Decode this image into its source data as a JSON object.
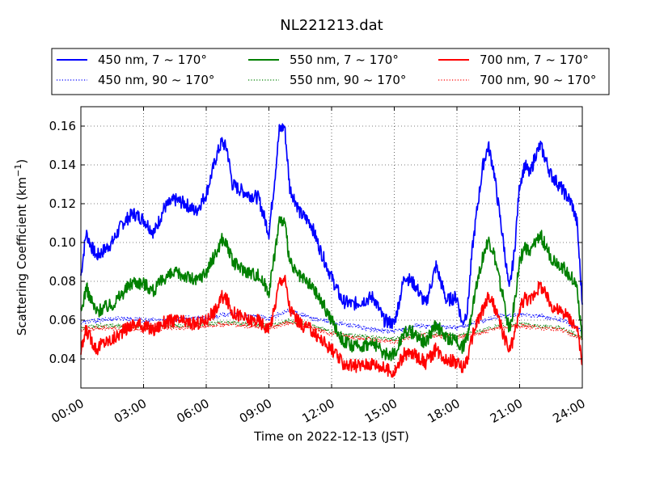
{
  "chart_data": {
    "type": "line",
    "title": "NL221213.dat",
    "xlabel": "Time on 2022-12-13 (JST)",
    "ylabel_main": "Scattering Coefficient (km",
    "ylabel_sup": "−1",
    "ylabel_end": ")",
    "xlim": [
      0,
      24
    ],
    "ylim": [
      0.025,
      0.17
    ],
    "x_ticks": [
      0,
      3,
      6,
      9,
      12,
      15,
      18,
      21,
      24
    ],
    "x_tick_labels": [
      "00:00",
      "03:00",
      "06:00",
      "09:00",
      "12:00",
      "15:00",
      "18:00",
      "21:00",
      "24:00"
    ],
    "y_ticks": [
      0.04,
      0.06,
      0.08,
      0.1,
      0.12,
      0.14,
      0.16
    ],
    "y_tick_labels": [
      "0.04",
      "0.06",
      "0.08",
      "0.10",
      "0.12",
      "0.14",
      "0.16"
    ],
    "grid": true,
    "legend_position": "top",
    "series": [
      {
        "name": "450 nm, 7 ~ 170°",
        "color": "#0000ff",
        "style": "solid",
        "x": [
          0,
          0.25,
          0.5,
          0.75,
          1,
          1.5,
          2,
          2.5,
          3,
          3.5,
          4,
          4.5,
          5,
          5.5,
          6,
          6.5,
          6.75,
          7,
          7.25,
          7.5,
          8,
          8.5,
          9,
          9.25,
          9.5,
          9.75,
          10,
          10.25,
          10.5,
          11,
          11.5,
          12,
          12.5,
          13,
          13.5,
          14,
          14.5,
          15,
          15.5,
          16,
          16.5,
          17,
          17.5,
          18,
          18.25,
          18.5,
          18.75,
          19,
          19.25,
          19.5,
          19.75,
          20,
          20.25,
          20.5,
          20.75,
          21,
          21.25,
          21.5,
          21.75,
          22,
          22.5,
          23,
          23.5,
          23.75,
          24
        ],
        "y": [
          0.083,
          0.105,
          0.098,
          0.093,
          0.095,
          0.1,
          0.11,
          0.115,
          0.112,
          0.105,
          0.118,
          0.122,
          0.12,
          0.116,
          0.125,
          0.145,
          0.152,
          0.148,
          0.13,
          0.128,
          0.125,
          0.123,
          0.105,
          0.13,
          0.158,
          0.16,
          0.128,
          0.122,
          0.115,
          0.11,
          0.095,
          0.082,
          0.07,
          0.068,
          0.07,
          0.072,
          0.06,
          0.058,
          0.083,
          0.078,
          0.068,
          0.088,
          0.07,
          0.072,
          0.058,
          0.065,
          0.098,
          0.12,
          0.14,
          0.15,
          0.138,
          0.118,
          0.098,
          0.075,
          0.095,
          0.13,
          0.14,
          0.135,
          0.145,
          0.15,
          0.135,
          0.128,
          0.12,
          0.11,
          0.068
        ]
      },
      {
        "name": "450 nm, 90 ~ 170°",
        "color": "#0000ff",
        "style": "dotted",
        "x": [
          0,
          1,
          2,
          3,
          4,
          5,
          6,
          7,
          8,
          9,
          10,
          11,
          12,
          13,
          14,
          15,
          16,
          17,
          18,
          19,
          20,
          21,
          22,
          23,
          24
        ],
        "y": [
          0.059,
          0.06,
          0.061,
          0.06,
          0.06,
          0.061,
          0.061,
          0.063,
          0.062,
          0.061,
          0.065,
          0.061,
          0.059,
          0.057,
          0.055,
          0.054,
          0.057,
          0.057,
          0.056,
          0.059,
          0.062,
          0.063,
          0.062,
          0.06,
          0.055
        ]
      },
      {
        "name": "550 nm, 7 ~ 170°",
        "color": "#008000",
        "style": "solid",
        "x": [
          0,
          0.25,
          0.5,
          0.75,
          1,
          1.5,
          2,
          2.5,
          3,
          3.5,
          4,
          4.5,
          5,
          5.5,
          6,
          6.5,
          6.75,
          7,
          7.25,
          7.5,
          8,
          8.5,
          9,
          9.25,
          9.5,
          9.75,
          10,
          10.25,
          10.5,
          11,
          11.5,
          12,
          12.5,
          13,
          13.5,
          14,
          14.5,
          15,
          15.5,
          16,
          16.5,
          17,
          17.5,
          18,
          18.25,
          18.5,
          18.75,
          19,
          19.25,
          19.5,
          19.75,
          20,
          20.25,
          20.5,
          20.75,
          21,
          21.25,
          21.5,
          21.75,
          22,
          22.5,
          23,
          23.5,
          23.75,
          24
        ],
        "y": [
          0.063,
          0.077,
          0.07,
          0.064,
          0.066,
          0.068,
          0.074,
          0.08,
          0.079,
          0.075,
          0.082,
          0.084,
          0.083,
          0.08,
          0.085,
          0.095,
          0.102,
          0.099,
          0.09,
          0.088,
          0.085,
          0.083,
          0.075,
          0.092,
          0.112,
          0.11,
          0.09,
          0.085,
          0.082,
          0.078,
          0.07,
          0.06,
          0.05,
          0.046,
          0.047,
          0.048,
          0.043,
          0.042,
          0.055,
          0.053,
          0.048,
          0.058,
          0.05,
          0.05,
          0.046,
          0.05,
          0.068,
          0.082,
          0.093,
          0.101,
          0.095,
          0.082,
          0.07,
          0.055,
          0.068,
          0.09,
          0.098,
          0.094,
          0.1,
          0.104,
          0.092,
          0.088,
          0.082,
          0.077,
          0.05
        ]
      },
      {
        "name": "550 nm, 90 ~ 170°",
        "color": "#008000",
        "style": "dotted",
        "x": [
          0,
          1,
          2,
          3,
          4,
          5,
          6,
          7,
          8,
          9,
          10,
          11,
          12,
          13,
          14,
          15,
          16,
          17,
          18,
          19,
          20,
          21,
          22,
          23,
          24
        ],
        "y": [
          0.056,
          0.057,
          0.057,
          0.056,
          0.057,
          0.057,
          0.058,
          0.059,
          0.058,
          0.057,
          0.06,
          0.057,
          0.054,
          0.052,
          0.051,
          0.05,
          0.053,
          0.053,
          0.052,
          0.054,
          0.057,
          0.058,
          0.057,
          0.056,
          0.051
        ]
      },
      {
        "name": "700 nm, 7 ~ 170°",
        "color": "#ff0000",
        "style": "solid",
        "x": [
          0,
          0.25,
          0.5,
          0.75,
          1,
          1.5,
          2,
          2.5,
          3,
          3.5,
          4,
          4.5,
          5,
          5.5,
          6,
          6.5,
          6.75,
          7,
          7.25,
          7.5,
          8,
          8.5,
          9,
          9.25,
          9.5,
          9.75,
          10,
          10.25,
          10.5,
          11,
          11.5,
          12,
          12.5,
          13,
          13.5,
          14,
          14.5,
          15,
          15.5,
          16,
          16.5,
          17,
          17.5,
          18,
          18.25,
          18.5,
          18.75,
          19,
          19.25,
          19.5,
          19.75,
          20,
          20.25,
          20.5,
          20.75,
          21,
          21.25,
          21.5,
          21.75,
          22,
          22.5,
          23,
          23.5,
          23.75,
          24
        ],
        "y": [
          0.043,
          0.055,
          0.05,
          0.045,
          0.048,
          0.05,
          0.054,
          0.058,
          0.057,
          0.055,
          0.059,
          0.06,
          0.059,
          0.058,
          0.06,
          0.066,
          0.072,
          0.07,
          0.064,
          0.063,
          0.06,
          0.06,
          0.055,
          0.065,
          0.08,
          0.082,
          0.066,
          0.062,
          0.058,
          0.055,
          0.05,
          0.045,
          0.038,
          0.036,
          0.037,
          0.038,
          0.035,
          0.033,
          0.043,
          0.042,
          0.038,
          0.045,
          0.04,
          0.038,
          0.035,
          0.04,
          0.052,
          0.06,
          0.065,
          0.072,
          0.068,
          0.06,
          0.052,
          0.044,
          0.052,
          0.065,
          0.072,
          0.07,
          0.075,
          0.078,
          0.068,
          0.064,
          0.06,
          0.055,
          0.037
        ]
      },
      {
        "name": "700 nm, 90 ~ 170°",
        "color": "#ff0000",
        "style": "dotted",
        "x": [
          0,
          1,
          2,
          3,
          4,
          5,
          6,
          7,
          8,
          9,
          10,
          11,
          12,
          13,
          14,
          15,
          16,
          17,
          18,
          19,
          20,
          21,
          22,
          23,
          24
        ],
        "y": [
          0.055,
          0.056,
          0.056,
          0.055,
          0.056,
          0.056,
          0.057,
          0.058,
          0.057,
          0.056,
          0.059,
          0.056,
          0.053,
          0.051,
          0.05,
          0.049,
          0.052,
          0.052,
          0.051,
          0.053,
          0.056,
          0.057,
          0.056,
          0.055,
          0.05
        ]
      }
    ]
  }
}
